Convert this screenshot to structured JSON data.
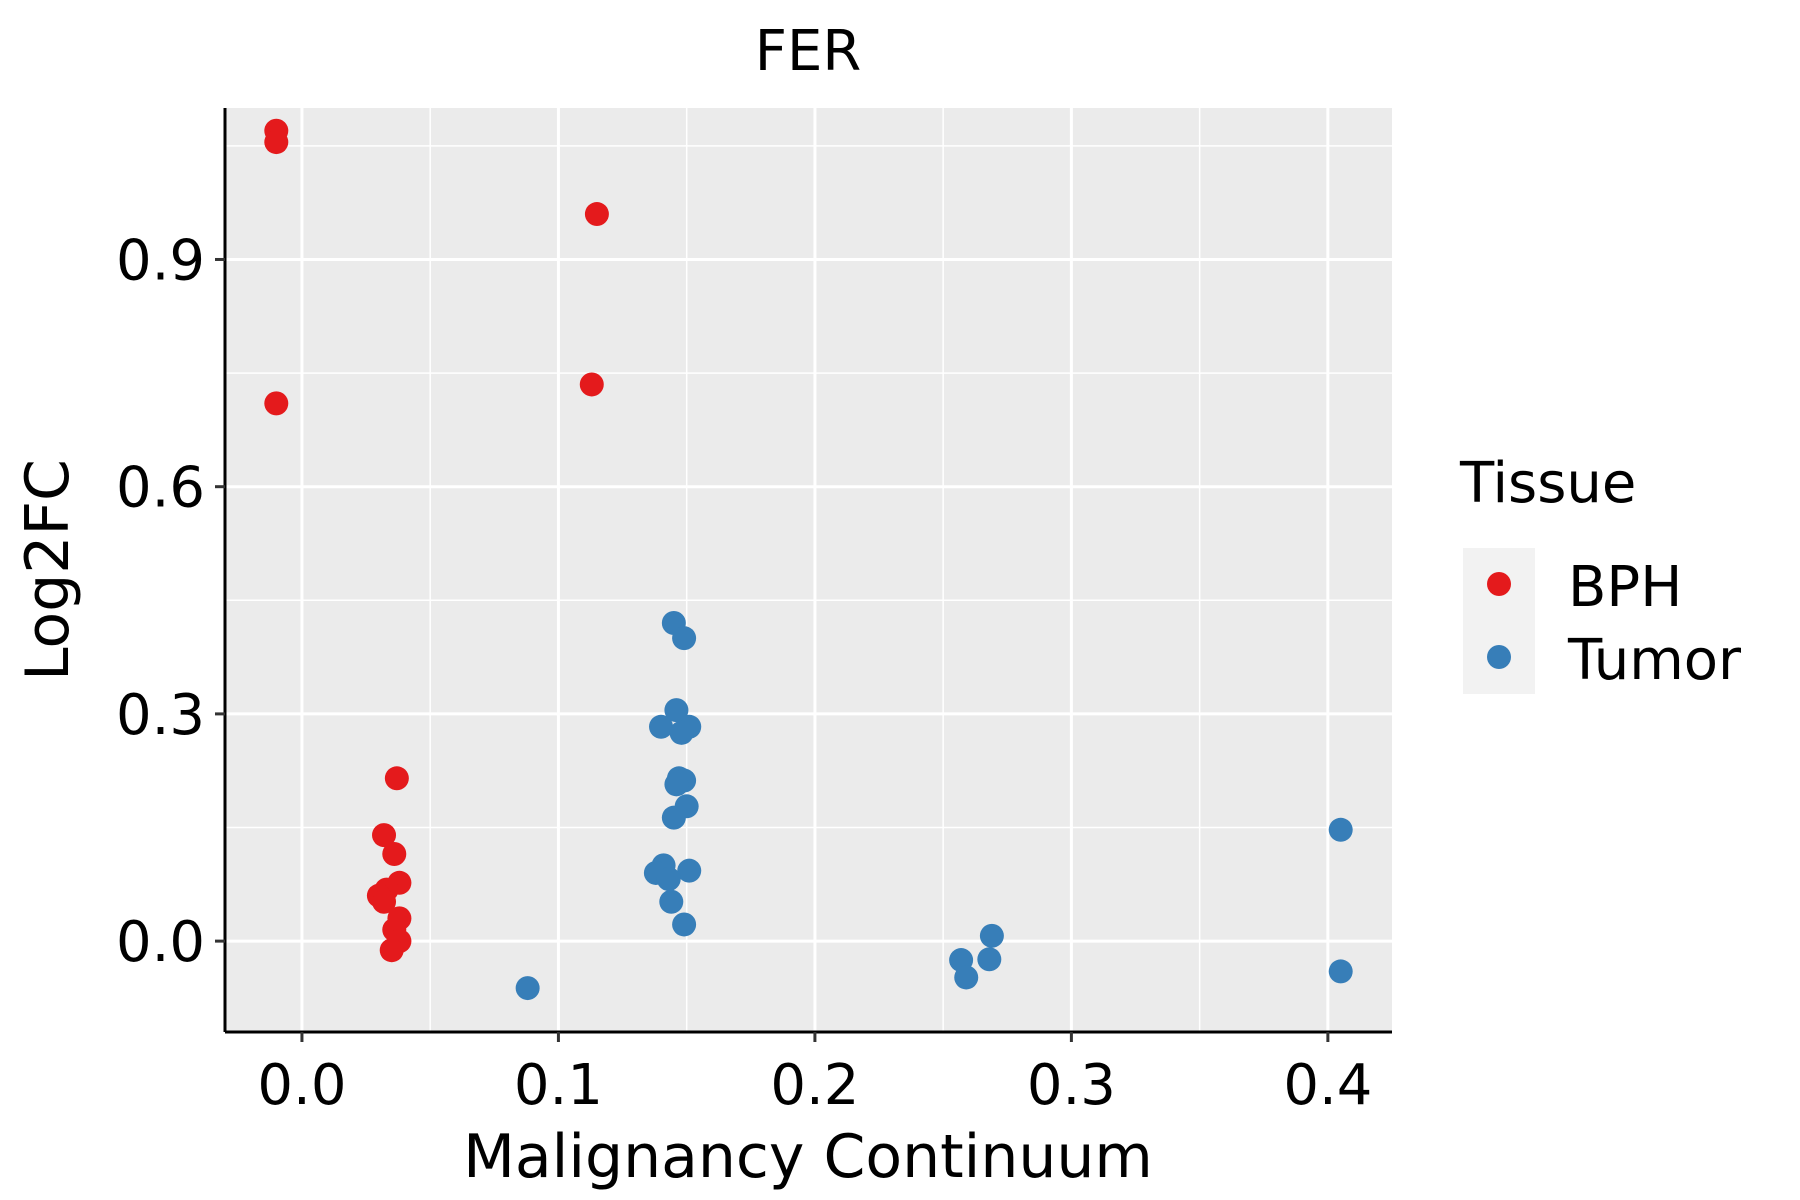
{
  "chart_data": {
    "type": "scatter",
    "title": "FER",
    "xlabel": "Malignancy Continuum",
    "ylabel": "Log2FC",
    "xlim": [
      -0.03,
      0.425
    ],
    "ylim": [
      -0.12,
      1.1
    ],
    "x_ticks": [
      0.0,
      0.1,
      0.2,
      0.3,
      0.4
    ],
    "x_tick_labels": [
      "0.0",
      "0.1",
      "0.2",
      "0.3",
      "0.4"
    ],
    "y_ticks": [
      0.0,
      0.3,
      0.6,
      0.9
    ],
    "y_tick_labels": [
      "0.0",
      "0.3",
      "0.6",
      "0.9"
    ],
    "grid": true,
    "legend": {
      "title": "Tissue",
      "position": "right",
      "entries": [
        "BPH",
        "Tumor"
      ]
    },
    "colors": {
      "BPH": "#e41a1c",
      "Tumor": "#377eb8",
      "panel": "#ebebeb"
    },
    "series": [
      {
        "name": "BPH",
        "points": [
          [
            -0.01,
            1.07
          ],
          [
            -0.01,
            1.055
          ],
          [
            -0.01,
            0.71
          ],
          [
            0.115,
            0.96
          ],
          [
            0.113,
            0.735
          ],
          [
            0.037,
            0.215
          ],
          [
            0.032,
            0.14
          ],
          [
            0.036,
            0.115
          ],
          [
            0.038,
            0.077
          ],
          [
            0.033,
            0.068
          ],
          [
            0.03,
            0.06
          ],
          [
            0.032,
            0.052
          ],
          [
            0.038,
            0.03
          ],
          [
            0.036,
            0.015
          ],
          [
            0.038,
            0.0
          ],
          [
            0.035,
            -0.012
          ]
        ]
      },
      {
        "name": "Tumor",
        "points": [
          [
            0.145,
            0.42
          ],
          [
            0.149,
            0.4
          ],
          [
            0.146,
            0.305
          ],
          [
            0.14,
            0.283
          ],
          [
            0.151,
            0.283
          ],
          [
            0.148,
            0.275
          ],
          [
            0.147,
            0.215
          ],
          [
            0.149,
            0.212
          ],
          [
            0.146,
            0.207
          ],
          [
            0.15,
            0.178
          ],
          [
            0.145,
            0.163
          ],
          [
            0.141,
            0.1
          ],
          [
            0.138,
            0.09
          ],
          [
            0.151,
            0.093
          ],
          [
            0.143,
            0.082
          ],
          [
            0.144,
            0.052
          ],
          [
            0.149,
            0.022
          ],
          [
            0.088,
            -0.062
          ],
          [
            0.269,
            0.007
          ],
          [
            0.257,
            -0.025
          ],
          [
            0.268,
            -0.024
          ],
          [
            0.259,
            -0.048
          ],
          [
            0.405,
            0.147
          ],
          [
            0.405,
            -0.04
          ]
        ]
      }
    ]
  }
}
